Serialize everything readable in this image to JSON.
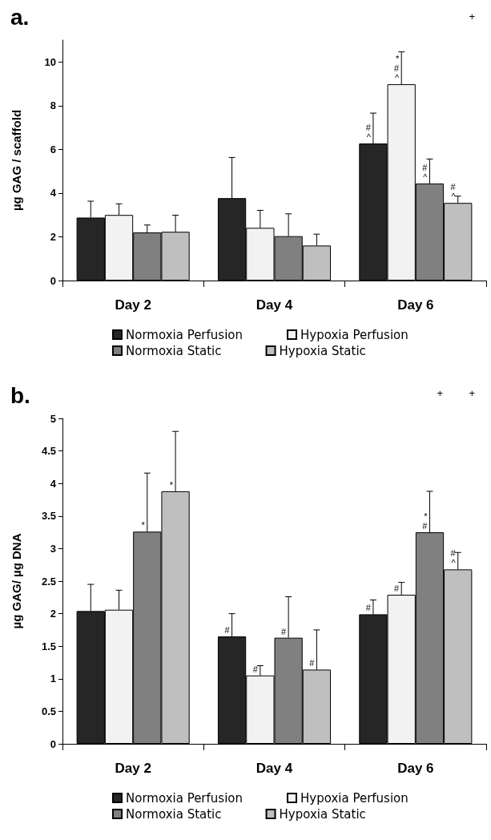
{
  "chart_data": [
    {
      "type": "bar",
      "title": "a.",
      "ylabel": "µg GAG / scaffold",
      "categories": [
        "Day 2",
        "Day 4",
        "Day 6"
      ],
      "ylim": [
        0,
        11
      ],
      "yticks": [
        0,
        2,
        4,
        6,
        8,
        10
      ],
      "grid": false,
      "legend": "bottom",
      "series": [
        {
          "name": "Normoxia Perfusion",
          "color": "#262626",
          "values": [
            2.88,
            3.77,
            6.27
          ],
          "errors": [
            [
              2.88,
              3.63
            ],
            [
              3.77,
              5.63
            ],
            [
              6.27,
              7.66
            ]
          ],
          "value_labels": [
            null,
            null,
            "#\n^"
          ]
        },
        {
          "name": "Hypoxia Perfusion",
          "color": "#f2f2f2",
          "values": [
            3.0,
            2.41,
            8.98
          ],
          "errors": [
            [
              3.0,
              3.51
            ],
            [
              2.41,
              3.21
            ],
            [
              8.98,
              10.46
            ]
          ],
          "value_labels": [
            null,
            null,
            "*\n#\n^"
          ]
        },
        {
          "name": "Normoxia Static",
          "color": "#808080",
          "values": [
            2.2,
            2.03,
            4.44
          ],
          "errors": [
            [
              2.2,
              2.54
            ],
            [
              2.03,
              3.05
            ],
            [
              4.44,
              5.56
            ]
          ],
          "value_labels": [
            null,
            null,
            "#\n^"
          ]
        },
        {
          "name": "Hypoxia Static",
          "color": "#bfbfbf",
          "values": [
            2.23,
            1.6,
            3.55
          ],
          "errors": [
            [
              2.23,
              2.99
            ],
            [
              1.6,
              2.12
            ],
            [
              3.55,
              3.86
            ]
          ],
          "value_labels": [
            null,
            null,
            "#\n^"
          ]
        }
      ],
      "annotations": [
        "+"
      ]
    },
    {
      "type": "bar",
      "title": "b.",
      "ylabel": "µg GAG/ µg DNA",
      "categories": [
        "Day 2",
        "Day 4",
        "Day 6"
      ],
      "ylim": [
        0,
        5
      ],
      "yticks": [
        0,
        0.5,
        1,
        1.5,
        2,
        2.5,
        3,
        3.5,
        4,
        4.5,
        5
      ],
      "grid": false,
      "legend": "bottom",
      "series": [
        {
          "name": "Normoxia Perfusion",
          "color": "#262626",
          "values": [
            2.04,
            1.65,
            1.99
          ],
          "errors": [
            [
              2.04,
              2.45
            ],
            [
              1.65,
              2.0
            ],
            [
              1.99,
              2.21
            ]
          ],
          "value_labels": [
            null,
            "#",
            "#"
          ]
        },
        {
          "name": "Hypoxia Perfusion",
          "color": "#f2f2f2",
          "values": [
            2.06,
            1.05,
            2.29
          ],
          "errors": [
            [
              2.06,
              2.36
            ],
            [
              1.05,
              1.2
            ],
            [
              2.29,
              2.48
            ]
          ],
          "value_labels": [
            null,
            "#",
            "#"
          ]
        },
        {
          "name": "Normoxia Static",
          "color": "#808080",
          "values": [
            3.26,
            1.63,
            3.25
          ],
          "errors": [
            [
              3.26,
              4.16
            ],
            [
              1.63,
              2.26
            ],
            [
              3.25,
              3.88
            ]
          ],
          "value_labels": [
            "*",
            "#",
            "*\n#"
          ]
        },
        {
          "name": "Hypoxia Static",
          "color": "#bfbfbf",
          "values": [
            3.88,
            1.14,
            2.68
          ],
          "errors": [
            [
              3.88,
              4.8
            ],
            [
              1.14,
              1.75
            ],
            [
              2.68,
              2.94
            ]
          ],
          "value_labels": [
            "*",
            "#",
            "#\n^"
          ]
        }
      ],
      "annotations": [
        "+",
        "+"
      ]
    }
  ]
}
